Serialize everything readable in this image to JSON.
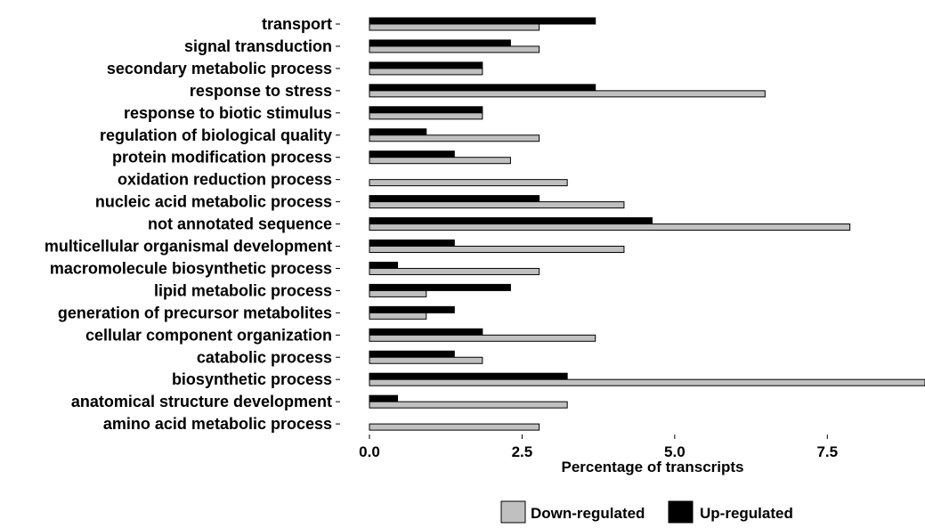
{
  "chart_data": {
    "type": "bar",
    "orientation": "horizontal",
    "title": "",
    "xlabel": "Percentage of transcripts",
    "ylabel": "",
    "xlim": [
      0,
      9.1
    ],
    "x_ticks": [
      0.0,
      2.5,
      5.0,
      7.5
    ],
    "x_tick_labels": [
      "0.0",
      "2.5",
      "5.0",
      "7.5"
    ],
    "grid": false,
    "legend_position": "bottom-right",
    "categories": [
      "transport",
      "signal transduction",
      "secondary metabolic process",
      "response to stress",
      "response to biotic stimulus",
      "regulation of biological quality",
      "protein modification process",
      "oxidation  reduction process",
      "nucleic acid metabolic process",
      "not annotated sequence",
      "multicellular organismal development",
      "macromolecule biosynthetic process",
      "lipid metabolic process",
      "generation of precursor metabolites",
      "cellular component organization",
      "catabolic process",
      "biosynthetic process",
      "anatomical structure development",
      "amino acid metabolic process"
    ],
    "series": [
      {
        "name": "Down-regulated",
        "color": "#c0c0c0",
        "values": [
          2.78,
          2.78,
          1.85,
          6.48,
          1.85,
          2.78,
          2.31,
          3.24,
          4.17,
          7.87,
          4.17,
          2.78,
          0.93,
          0.93,
          3.7,
          1.85,
          9.1,
          3.24,
          2.78
        ]
      },
      {
        "name": "Up-regulated",
        "color": "#000000",
        "values": [
          3.7,
          2.31,
          1.85,
          3.7,
          1.85,
          0.93,
          1.39,
          0.0,
          2.78,
          4.63,
          1.39,
          0.46,
          2.31,
          1.39,
          1.85,
          1.39,
          3.24,
          0.46,
          0.0
        ]
      }
    ]
  }
}
